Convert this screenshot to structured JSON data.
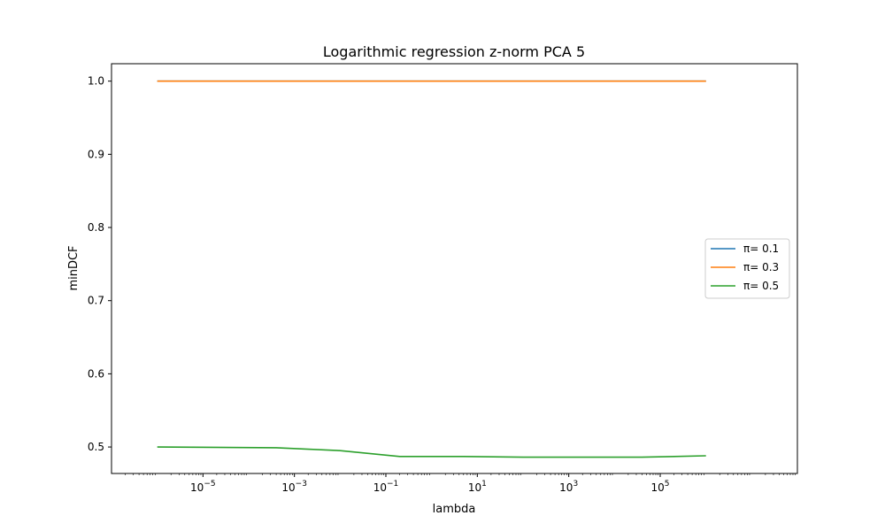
{
  "chart_data": {
    "type": "line",
    "title": "Logarithmic regression z-norm PCA 5",
    "xlabel": "lambda",
    "ylabel": "minDCF",
    "x_scale": "log",
    "xlim": [
      1e-07,
      100000000
    ],
    "ylim": [
      0.4638,
      1.0238
    ],
    "x_ticks": [
      {
        "value": 1e-05,
        "base": "10",
        "exp": "−5"
      },
      {
        "value": 0.001,
        "base": "10",
        "exp": "−3"
      },
      {
        "value": 0.1,
        "base": "10",
        "exp": "−1"
      },
      {
        "value": 10,
        "base": "10",
        "exp": "1"
      },
      {
        "value": 1000,
        "base": "10",
        "exp": "3"
      },
      {
        "value": 100000,
        "base": "10",
        "exp": "5"
      }
    ],
    "y_ticks": [
      {
        "value": 0.5,
        "label": "0.5"
      },
      {
        "value": 0.6,
        "label": "0.6"
      },
      {
        "value": 0.7,
        "label": "0.7"
      },
      {
        "value": 0.8,
        "label": "0.8"
      },
      {
        "value": 0.9,
        "label": "0.9"
      },
      {
        "value": 1.0,
        "label": "1.0"
      }
    ],
    "grid": false,
    "legend": {
      "position": "center-right"
    },
    "x": [
      1e-06,
      0.0004,
      0.01,
      0.2,
      5,
      100,
      2000,
      40000,
      1000000
    ],
    "series": [
      {
        "name": "π= 0.1",
        "color": "#1f77b4",
        "values": [
          1.0,
          1.0,
          1.0,
          1.0,
          1.0,
          1.0,
          1.0,
          1.0,
          1.0
        ]
      },
      {
        "name": "π= 0.3",
        "color": "#ff7f0e",
        "values": [
          1.0,
          1.0,
          1.0,
          1.0,
          1.0,
          1.0,
          1.0,
          1.0,
          1.0
        ]
      },
      {
        "name": "π= 0.5",
        "color": "#2ca02c",
        "values": [
          0.5,
          0.499,
          0.495,
          0.487,
          0.487,
          0.486,
          0.486,
          0.486,
          0.488
        ]
      }
    ]
  }
}
